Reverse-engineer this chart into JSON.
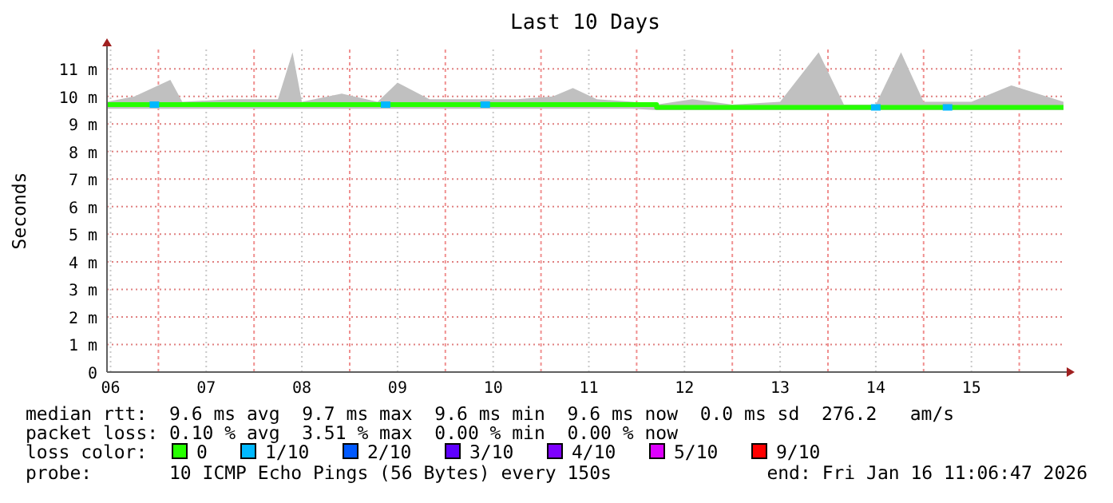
{
  "chart_data": {
    "type": "line",
    "title": "Last 10 Days",
    "ylabel": "Seconds",
    "x": [
      "2026-01-06T11:06",
      "2026-01-06T18:00",
      "2026-01-07T03:00",
      "2026-01-07T06:00",
      "2026-01-07T18:00",
      "2026-01-08T06:00",
      "2026-01-08T09:40",
      "2026-01-08T12:00",
      "2026-01-08T22:00",
      "2026-01-09T07:00",
      "2026-01-09T12:00",
      "2026-01-09T20:00",
      "2026-01-10T06:00",
      "2026-01-10T18:00",
      "2026-01-11T03:00",
      "2026-01-11T08:00",
      "2026-01-11T14:00",
      "2026-01-11T23:00",
      "2026-01-12T05:00",
      "2026-01-12T14:00",
      "2026-01-13T00:00",
      "2026-01-13T12:00",
      "2026-01-13T21:40",
      "2026-01-14T04:00",
      "2026-01-14T12:00",
      "2026-01-14T18:20",
      "2026-01-15T00:00",
      "2026-01-15T12:00",
      "2026-01-15T22:00",
      "2026-01-16T11:06"
    ],
    "series": [
      {
        "name": "0",
        "color": "#26ff00",
        "values": [
          9.7,
          9.7,
          9.7,
          9.7,
          9.7,
          9.7,
          9.7,
          9.7,
          9.7,
          9.7,
          9.7,
          9.7,
          9.7,
          9.7,
          9.7,
          9.7,
          9.7,
          9.7,
          9.6,
          9.6,
          9.6,
          9.6,
          9.6,
          9.6,
          9.6,
          9.6,
          9.6,
          9.6,
          9.6,
          9.6
        ],
        "lower": [
          9.55,
          9.55,
          9.55,
          9.55,
          9.55,
          9.55,
          9.55,
          9.55,
          9.55,
          9.55,
          9.55,
          9.55,
          9.55,
          9.55,
          9.55,
          9.55,
          9.55,
          9.55,
          9.5,
          9.5,
          9.5,
          9.5,
          9.5,
          9.5,
          9.5,
          9.5,
          9.5,
          9.5,
          9.5,
          9.5
        ],
        "upper": [
          9.8,
          10,
          10.6,
          9.8,
          9.9,
          9.9,
          11.6,
          9.8,
          10.1,
          9.8,
          10.5,
          9.9,
          9.9,
          9.9,
          10,
          10.3,
          9.9,
          9.8,
          9.7,
          9.9,
          9.7,
          9.8,
          11.6,
          9.7,
          9.7,
          11.6,
          9.8,
          9.8,
          10.4,
          9.8
        ]
      },
      {
        "name": "1/10",
        "color": "#00b8ff",
        "type": "scatter",
        "marker": "square",
        "x": [
          "2026-01-06T23:00",
          "2026-01-09T09:00",
          "2026-01-10T10:00",
          "2026-01-14T12:00",
          "2026-01-15T06:00"
        ],
        "values": [
          9.7,
          9.7,
          9.7,
          9.6,
          9.6
        ]
      },
      {
        "name": "2/10",
        "color": "#0059ff",
        "type": "scatter",
        "values": [
          null,
          null,
          null,
          null,
          null,
          null,
          null,
          null,
          null,
          null,
          null,
          null,
          null,
          null,
          null,
          null,
          null,
          null,
          null,
          null,
          null,
          null,
          null,
          null,
          null,
          null,
          null,
          null,
          null,
          null
        ]
      },
      {
        "name": "3/10",
        "color": "#5e00ff",
        "type": "scatter",
        "values": [
          null,
          null,
          null,
          null,
          null,
          null,
          null,
          null,
          null,
          null,
          null,
          null,
          null,
          null,
          null,
          null,
          null,
          null,
          null,
          null,
          null,
          null,
          null,
          null,
          null,
          null,
          null,
          null,
          null,
          null
        ]
      },
      {
        "name": "4/10",
        "color": "#7e00ff",
        "type": "scatter",
        "values": [
          null,
          null,
          null,
          null,
          null,
          null,
          null,
          null,
          null,
          null,
          null,
          null,
          null,
          null,
          null,
          null,
          null,
          null,
          null,
          null,
          null,
          null,
          null,
          null,
          null,
          null,
          null,
          null,
          null,
          null
        ]
      },
      {
        "name": "5/10",
        "color": "#dd00ff",
        "type": "scatter",
        "values": [
          null,
          null,
          null,
          null,
          null,
          null,
          null,
          null,
          null,
          null,
          null,
          null,
          null,
          null,
          null,
          null,
          null,
          null,
          null,
          null,
          null,
          null,
          null,
          null,
          null,
          null,
          null,
          null,
          null,
          null
        ]
      },
      {
        "name": "9/10",
        "color": "#ff0000",
        "type": "scatter",
        "values": [
          null,
          null,
          null,
          null,
          null,
          null,
          null,
          null,
          null,
          null,
          null,
          null,
          null,
          null,
          null,
          null,
          null,
          null,
          null,
          null,
          null,
          null,
          null,
          null,
          null,
          null,
          null,
          null,
          null,
          null
        ]
      }
    ],
    "xlim": [
      "2026-01-06T11:06",
      "2026-01-16T11:06"
    ],
    "xticks": [
      {
        "value": "2026-01-06T12:00",
        "label": "06"
      },
      {
        "value": "2026-01-07T00:00",
        "label": null
      },
      {
        "value": "2026-01-07T12:00",
        "label": "07"
      },
      {
        "value": "2026-01-08T00:00",
        "label": null
      },
      {
        "value": "2026-01-08T12:00",
        "label": "08"
      },
      {
        "value": "2026-01-09T00:00",
        "label": null
      },
      {
        "value": "2026-01-09T12:00",
        "label": "09"
      },
      {
        "value": "2026-01-10T00:00",
        "label": null
      },
      {
        "value": "2026-01-10T12:00",
        "label": "10"
      },
      {
        "value": "2026-01-11T00:00",
        "label": null
      },
      {
        "value": "2026-01-11T12:00",
        "label": "11"
      },
      {
        "value": "2026-01-12T00:00",
        "label": null
      },
      {
        "value": "2026-01-12T12:00",
        "label": "12"
      },
      {
        "value": "2026-01-13T00:00",
        "label": null
      },
      {
        "value": "2026-01-13T12:00",
        "label": "13"
      },
      {
        "value": "2026-01-14T00:00",
        "label": null
      },
      {
        "value": "2026-01-14T12:00",
        "label": "14"
      },
      {
        "value": "2026-01-15T00:00",
        "label": null
      },
      {
        "value": "2026-01-15T12:00",
        "label": "15"
      },
      {
        "value": "2026-01-16T00:00",
        "label": null
      }
    ],
    "ylim": [
      0,
      11.7
    ],
    "yticks": [
      0,
      {
        "value": 1,
        "label": "1 m"
      },
      {
        "value": 2,
        "label": "2 m"
      },
      {
        "value": 3,
        "label": "3 m"
      },
      {
        "value": 4,
        "label": "4 m"
      },
      {
        "value": 5,
        "label": "5 m"
      },
      {
        "value": 6,
        "label": "6 m"
      },
      {
        "value": 7,
        "label": "7 m"
      },
      {
        "value": 8,
        "label": "8 m"
      },
      {
        "value": 9,
        "label": "9 m"
      },
      {
        "value": 10,
        "label": "10 m"
      },
      {
        "value": 11,
        "label": "11 m"
      }
    ],
    "grid": true,
    "legend": "bottom",
    "legend_title": "loss color:",
    "annotations": [
      "median rtt:  9.6 ms avg  9.7 ms max  9.6 ms min  9.6 ms now  0.0 ms sd  276.2   am/s",
      "packet loss: 0.10 % avg  3.51 % max  0.00 % min  0.00 % now",
      "probe:       10 ICMP Echo Pings (56 Bytes) every 150s",
      "end: Fri Jan 16 11:06:47 2026"
    ]
  }
}
